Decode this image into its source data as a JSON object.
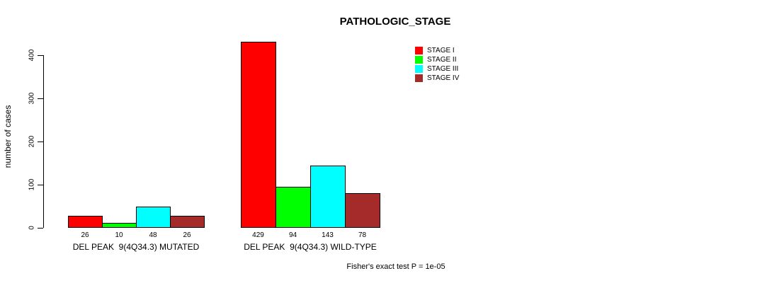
{
  "chart_data": {
    "type": "bar",
    "title": "PATHOLOGIC_STAGE",
    "xlabel": "",
    "ylabel": "number of cases",
    "ylim": [
      0,
      429
    ],
    "y_ticks": [
      0,
      100,
      200,
      300,
      400
    ],
    "grid": false,
    "legend_position": "top-right",
    "categories": [
      "DEL PEAK  9(4Q34.3) MUTATED",
      "DEL PEAK  9(4Q34.3) WILD-TYPE"
    ],
    "series": [
      {
        "name": "STAGE I",
        "color": "#ff0000",
        "values": [
          26,
          429
        ]
      },
      {
        "name": "STAGE II",
        "color": "#00ff00",
        "values": [
          10,
          94
        ]
      },
      {
        "name": "STAGE III",
        "color": "#00ffff",
        "values": [
          48,
          143
        ]
      },
      {
        "name": "STAGE IV",
        "color": "#a52a2a",
        "values": [
          26,
          78
        ]
      }
    ],
    "bar_value_labels_shown": true,
    "annotation": "Fisher's exact test P = 1e-05"
  }
}
